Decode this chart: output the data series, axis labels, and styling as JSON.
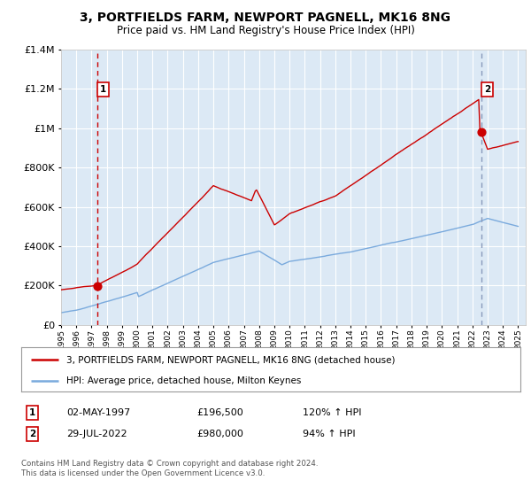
{
  "title": "3, PORTFIELDS FARM, NEWPORT PAGNELL, MK16 8NG",
  "subtitle": "Price paid vs. HM Land Registry's House Price Index (HPI)",
  "legend_line1": "3, PORTFIELDS FARM, NEWPORT PAGNELL, MK16 8NG (detached house)",
  "legend_line2": "HPI: Average price, detached house, Milton Keynes",
  "transaction1_date": "02-MAY-1997",
  "transaction1_price": "£196,500",
  "transaction1_hpi": "120% ↑ HPI",
  "transaction1_year": 1997.37,
  "transaction1_value": 196500,
  "transaction2_date": "29-JUL-2022",
  "transaction2_price": "£980,000",
  "transaction2_hpi": "94% ↑ HPI",
  "transaction2_year": 2022.58,
  "transaction2_value": 980000,
  "ylim": [
    0,
    1400000
  ],
  "xlim_start": 1995.0,
  "xlim_end": 2025.5,
  "background_color": "#dce9f5",
  "grid_color": "#ffffff",
  "red_line_color": "#cc0000",
  "blue_line_color": "#7aaadd",
  "dashed1_color": "#cc0000",
  "dashed2_color": "#8899bb",
  "footer_text": "Contains HM Land Registry data © Crown copyright and database right 2024.\nThis data is licensed under the Open Government Licence v3.0."
}
